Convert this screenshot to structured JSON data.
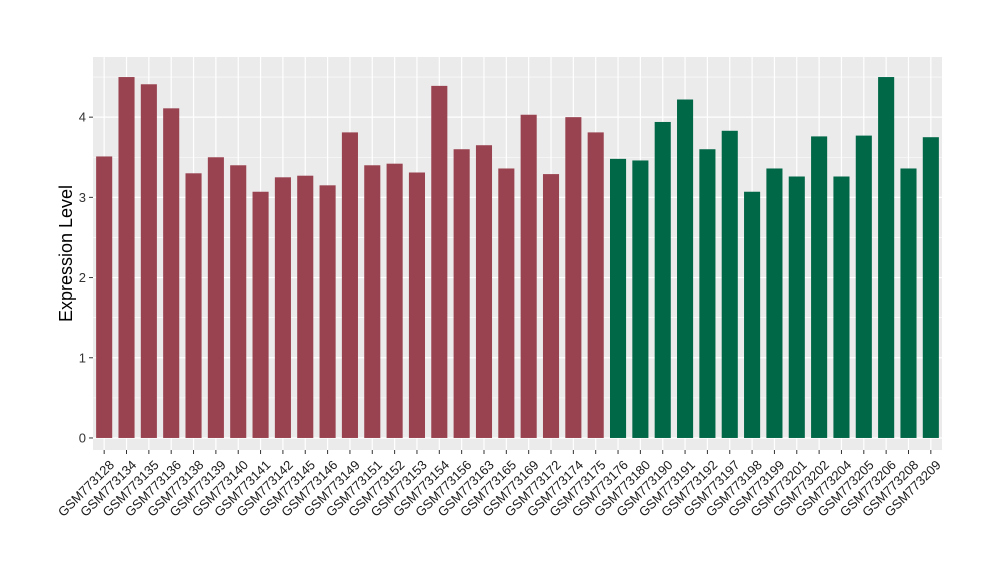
{
  "chart_data": {
    "type": "bar",
    "title": "",
    "xlabel": "",
    "ylabel": "Expression Level",
    "ylim": [
      -0.15,
      4.75
    ],
    "yticks": [
      0,
      1,
      2,
      3,
      4
    ],
    "grid": true,
    "legend": "none",
    "colors": {
      "group_1": "#9a4350",
      "group_2": "#006747",
      "panel_background": "#ebebeb",
      "grid_line": "#ffffff"
    },
    "categories": [
      "GSM773128",
      "GSM773134",
      "GSM773135",
      "GSM773136",
      "GSM773138",
      "GSM773139",
      "GSM773140",
      "GSM773141",
      "GSM773142",
      "GSM773145",
      "GSM773146",
      "GSM773149",
      "GSM773151",
      "GSM773152",
      "GSM773153",
      "GSM773154",
      "GSM773156",
      "GSM773163",
      "GSM773165",
      "GSM773169",
      "GSM773172",
      "GSM773174",
      "GSM773175",
      "GSM773176",
      "GSM773180",
      "GSM773190",
      "GSM773191",
      "GSM773192",
      "GSM773197",
      "GSM773198",
      "GSM773199",
      "GSM773201",
      "GSM773202",
      "GSM773204",
      "GSM773205",
      "GSM773206",
      "GSM773208",
      "GSM773209"
    ],
    "values": [
      3.51,
      4.5,
      4.41,
      4.11,
      3.3,
      3.5,
      3.4,
      3.07,
      3.25,
      3.27,
      3.15,
      3.81,
      3.4,
      3.42,
      3.31,
      4.39,
      3.6,
      3.65,
      3.36,
      4.03,
      3.29,
      4.0,
      3.81,
      3.48,
      3.46,
      3.94,
      4.22,
      3.6,
      3.83,
      3.07,
      3.36,
      3.26,
      3.76,
      3.26,
      3.77,
      4.5,
      3.36,
      3.75
    ],
    "groups": [
      1,
      1,
      1,
      1,
      1,
      1,
      1,
      1,
      1,
      1,
      1,
      1,
      1,
      1,
      1,
      1,
      1,
      1,
      1,
      1,
      1,
      1,
      1,
      2,
      2,
      2,
      2,
      2,
      2,
      2,
      2,
      2,
      2,
      2,
      2,
      2,
      2,
      2
    ]
  }
}
